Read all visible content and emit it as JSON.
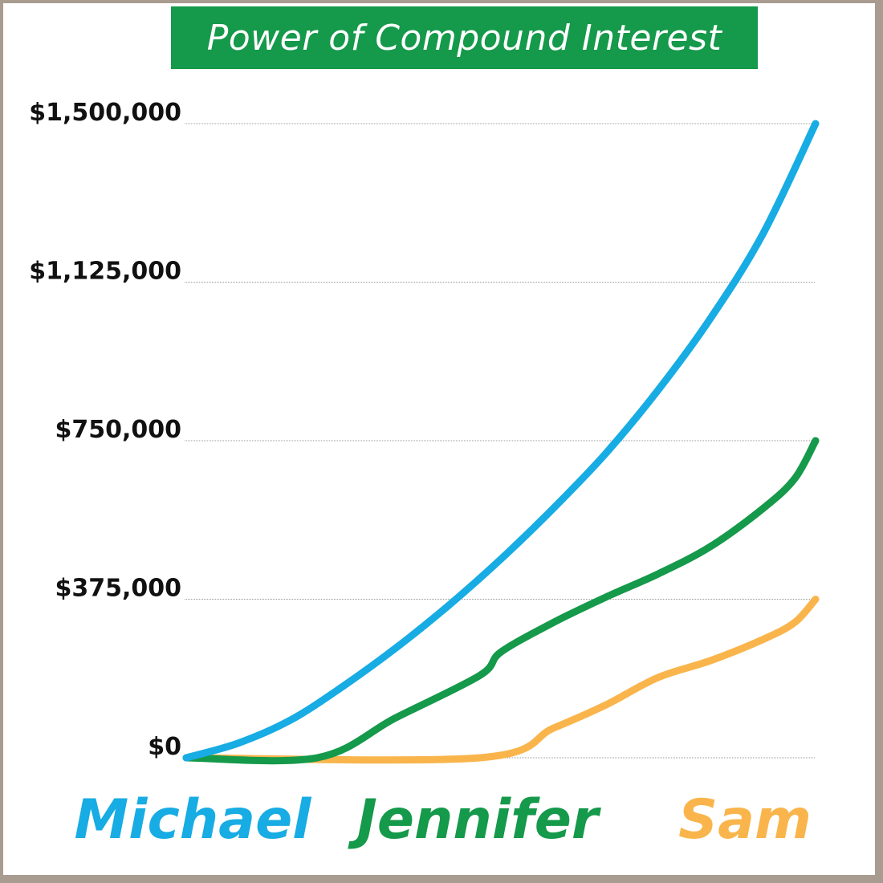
{
  "chart_data": {
    "type": "line",
    "title": "Power of Compound Interest",
    "xlabel": "",
    "ylabel": "",
    "ylim": [
      0,
      1500000
    ],
    "yticks": [
      {
        "value": 0,
        "label": "$0"
      },
      {
        "value": 375000,
        "label": "$375,000"
      },
      {
        "value": 750000,
        "label": "$750,000"
      },
      {
        "value": 1125000,
        "label": "$1,125,000"
      },
      {
        "value": 1500000,
        "label": "$1,500,000"
      }
    ],
    "grid": true,
    "legend": "bottom",
    "series": [
      {
        "name": "Michael",
        "color": "#17ace3",
        "points": [
          [
            0,
            0
          ],
          [
            5,
            35000
          ],
          [
            10,
            90000
          ],
          [
            15,
            170000
          ],
          [
            20,
            260000
          ],
          [
            25,
            360000
          ],
          [
            30,
            470000
          ],
          [
            35,
            590000
          ],
          [
            40,
            720000
          ],
          [
            45,
            870000
          ],
          [
            50,
            1040000
          ],
          [
            55,
            1240000
          ],
          [
            60,
            1500000
          ]
        ]
      },
      {
        "name": "Jennifer",
        "color": "#15994a",
        "points": [
          [
            0,
            0
          ],
          [
            12.5,
            0
          ],
          [
            20,
            95000
          ],
          [
            28,
            195000
          ],
          [
            30,
            250000
          ],
          [
            35,
            320000
          ],
          [
            40,
            380000
          ],
          [
            45,
            435000
          ],
          [
            50,
            500000
          ],
          [
            55,
            590000
          ],
          [
            58,
            660000
          ],
          [
            60,
            750000
          ]
        ]
      },
      {
        "name": "Sam",
        "color": "#f9b54c",
        "points": [
          [
            0,
            0
          ],
          [
            28,
            0
          ],
          [
            35,
            70000
          ],
          [
            40,
            125000
          ],
          [
            45,
            190000
          ],
          [
            50,
            230000
          ],
          [
            55,
            280000
          ],
          [
            58,
            320000
          ],
          [
            60,
            375000
          ]
        ]
      }
    ]
  }
}
